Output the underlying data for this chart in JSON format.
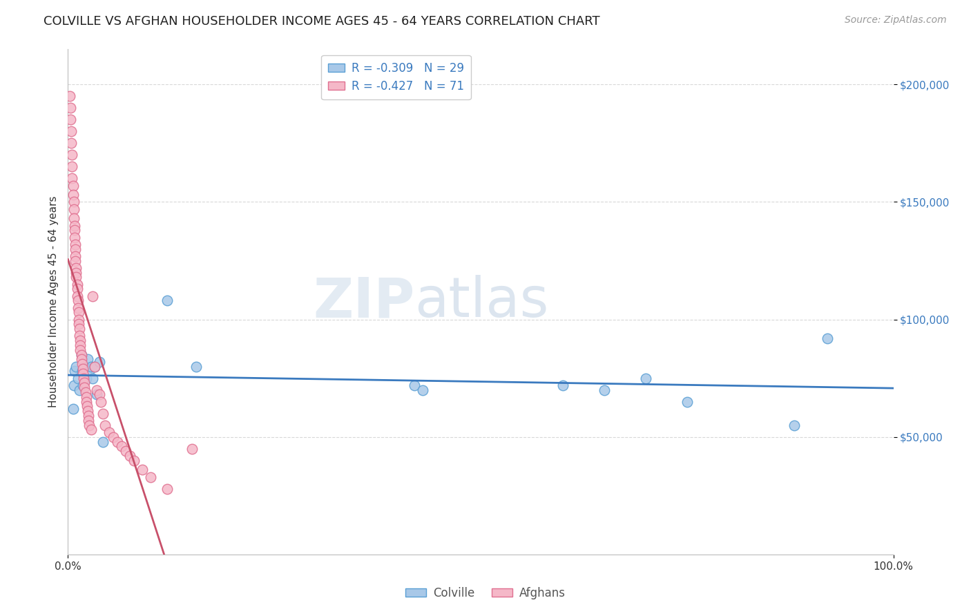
{
  "title": "COLVILLE VS AFGHAN HOUSEHOLDER INCOME AGES 45 - 64 YEARS CORRELATION CHART",
  "source": "Source: ZipAtlas.com",
  "ylabel": "Householder Income Ages 45 - 64 years",
  "xlim": [
    0.0,
    1.0
  ],
  "ylim": [
    0,
    215000
  ],
  "yticks": [
    50000,
    100000,
    150000,
    200000
  ],
  "ytick_labels": [
    "$50,000",
    "$100,000",
    "$150,000",
    "$200,000"
  ],
  "xtick_labels": [
    "0.0%",
    "100.0%"
  ],
  "watermark_zip": "ZIP",
  "watermark_atlas": "atlas",
  "colville_x": [
    0.006,
    0.007,
    0.008,
    0.01,
    0.012,
    0.014,
    0.016,
    0.017,
    0.018,
    0.02,
    0.022,
    0.024,
    0.026,
    0.028,
    0.03,
    0.032,
    0.035,
    0.038,
    0.042,
    0.12,
    0.155,
    0.42,
    0.43,
    0.6,
    0.65,
    0.7,
    0.75,
    0.88,
    0.92
  ],
  "colville_y": [
    62000,
    72000,
    78000,
    80000,
    75000,
    70000,
    85000,
    78000,
    72000,
    80000,
    75000,
    83000,
    78000,
    80000,
    75000,
    80000,
    68000,
    82000,
    48000,
    108000,
    80000,
    72000,
    70000,
    72000,
    70000,
    75000,
    65000,
    55000,
    92000
  ],
  "afghan_x": [
    0.002,
    0.003,
    0.003,
    0.004,
    0.004,
    0.005,
    0.005,
    0.005,
    0.006,
    0.006,
    0.007,
    0.007,
    0.007,
    0.008,
    0.008,
    0.008,
    0.009,
    0.009,
    0.009,
    0.009,
    0.01,
    0.01,
    0.01,
    0.011,
    0.011,
    0.011,
    0.012,
    0.012,
    0.013,
    0.013,
    0.013,
    0.014,
    0.014,
    0.015,
    0.015,
    0.015,
    0.016,
    0.016,
    0.017,
    0.018,
    0.018,
    0.019,
    0.02,
    0.02,
    0.021,
    0.022,
    0.022,
    0.023,
    0.024,
    0.025,
    0.025,
    0.026,
    0.028,
    0.03,
    0.032,
    0.035,
    0.038,
    0.04,
    0.042,
    0.045,
    0.05,
    0.055,
    0.06,
    0.065,
    0.07,
    0.075,
    0.08,
    0.09,
    0.1,
    0.12,
    0.15
  ],
  "afghan_y": [
    195000,
    190000,
    185000,
    180000,
    175000,
    170000,
    165000,
    160000,
    157000,
    153000,
    150000,
    147000,
    143000,
    140000,
    138000,
    135000,
    132000,
    130000,
    127000,
    125000,
    122000,
    120000,
    118000,
    115000,
    113000,
    110000,
    108000,
    105000,
    103000,
    100000,
    98000,
    96000,
    93000,
    91000,
    89000,
    87000,
    85000,
    83000,
    81000,
    79000,
    77000,
    75000,
    73000,
    71000,
    69000,
    67000,
    65000,
    63000,
    61000,
    59000,
    57000,
    55000,
    53000,
    110000,
    80000,
    70000,
    68000,
    65000,
    60000,
    55000,
    52000,
    50000,
    48000,
    46000,
    44000,
    42000,
    40000,
    36000,
    33000,
    28000,
    45000
  ],
  "colville_color": "#a8c8e8",
  "afghan_color": "#f5b8c8",
  "colville_edge": "#5a9fd4",
  "afghan_edge": "#e07090",
  "trendline_colville_color": "#3a7abf",
  "trendline_afghan_color": "#c8506a",
  "trendline_afghan_dashed_color": "#e8b0c0",
  "legend_colville_R": "-0.309",
  "legend_colville_N": "29",
  "legend_afghan_R": "-0.427",
  "legend_afghan_N": "71",
  "grid_color": "#d8d8d8",
  "background_color": "#ffffff",
  "title_fontsize": 13,
  "axis_label_fontsize": 11,
  "tick_fontsize": 11,
  "legend_fontsize": 12,
  "source_fontsize": 10
}
